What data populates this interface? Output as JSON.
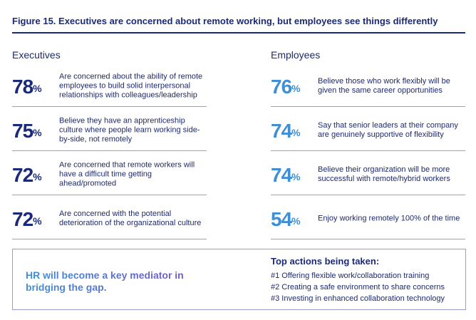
{
  "title": "Figure 15. Executives are concerned about remote working, but employees see things differently",
  "executives": {
    "heading": "Executives",
    "stats": [
      {
        "value": "78",
        "unit": "%",
        "text": "Are concerned about the ability of remote employees to build solid interpersonal relationships with colleagues/leadership"
      },
      {
        "value": "75",
        "unit": "%",
        "text": "Believe they have an apprenticeship culture where people learn working side-by-side, not remotely"
      },
      {
        "value": "72",
        "unit": "%",
        "text": "Are concerned that remote workers will have a difficult time getting ahead/promoted"
      },
      {
        "value": "72",
        "unit": "%",
        "text": "Are concerned with the potential deterioration of the organizational culture"
      }
    ]
  },
  "employees": {
    "heading": "Employees",
    "stats": [
      {
        "value": "76",
        "unit": "%",
        "text": "Believe those who work flexibly will be given the same career opportunities"
      },
      {
        "value": "74",
        "unit": "%",
        "text": "Say that senior leaders at their company are genuinely supportive of flexibility"
      },
      {
        "value": "74",
        "unit": "%",
        "text": "Believe their organization will be more successful with remote/hybrid workers"
      },
      {
        "value": "54",
        "unit": "%",
        "text": "Enjoy working remotely 100% of the time"
      }
    ]
  },
  "callout": {
    "mediator_text": "HR will become a key mediator in bridging the gap.",
    "actions_title": "Top actions being taken:",
    "actions": [
      "#1 Offering flexible work/collaboration training",
      "#2 Creating a safe environment to share concerns",
      "#3 Investing in enhanced collaboration technology"
    ]
  },
  "colors": {
    "navy": "#1a2a78",
    "blue": "#3f8fd6",
    "purple": "#7b52c4"
  }
}
